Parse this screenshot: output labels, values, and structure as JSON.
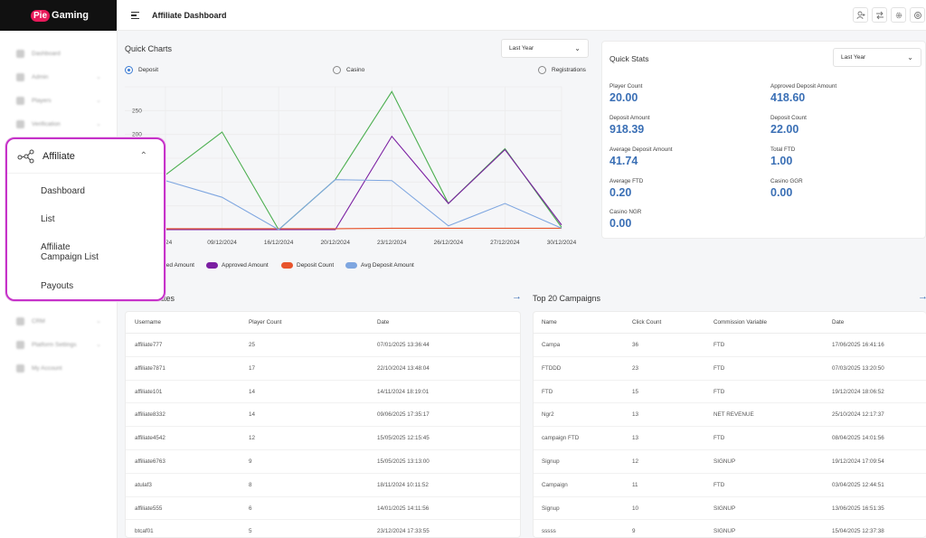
{
  "brand": {
    "logo_badge": "Pie",
    "logo_text": "Gaming"
  },
  "header": {
    "title": "Affiliate Dashboard",
    "icons": [
      "user-add-icon",
      "transfer-icon",
      "gear-icon",
      "settings-icon"
    ]
  },
  "sidebar": {
    "items_top": [
      {
        "label": "Dashboard",
        "icon": "dashboard-icon"
      },
      {
        "label": "Admin",
        "icon": "admin-icon",
        "chevron": "⌄"
      },
      {
        "label": "Players",
        "icon": "players-icon",
        "chevron": "⌄"
      },
      {
        "label": "Verification",
        "icon": "verification-icon",
        "chevron": "⌄"
      }
    ],
    "items_bottom": [
      {
        "label": "CRM",
        "icon": "crm-icon",
        "chevron": "⌄"
      },
      {
        "label": "Platform Settings",
        "icon": "platform-settings-icon",
        "chevron": "⌄"
      },
      {
        "label": "My Account",
        "icon": "account-icon"
      }
    ],
    "affiliate": {
      "label": "Affiliate",
      "caret": "⌃",
      "items": [
        "Dashboard",
        "List",
        "Affiliate",
        "Campaign List",
        "Payouts"
      ]
    }
  },
  "quick_charts": {
    "title": "Quick Charts",
    "period": "Last Year",
    "radios": [
      {
        "label": "Deposit",
        "selected": true
      },
      {
        "label": "Casino",
        "selected": false
      },
      {
        "label": "Registrations",
        "selected": false
      }
    ],
    "legend": [
      {
        "label": "ted Amount",
        "color": "#4caf50"
      },
      {
        "label": "Approved Amount",
        "color": "#7b1fa2"
      },
      {
        "label": "Deposit Count",
        "color": "#e8542c"
      },
      {
        "label": "Avg Deposit Amount",
        "color": "#7ea6e0"
      }
    ]
  },
  "chart_data": {
    "type": "line",
    "x": [
      "24",
      "09/12/2024",
      "16/12/2024",
      "20/12/2024",
      "23/12/2024",
      "26/12/2024",
      "27/12/2024",
      "30/12/2024"
    ],
    "y_ticks": [
      "250",
      "200"
    ],
    "ylim": [
      0,
      300
    ],
    "series": [
      {
        "name": "ted Amount",
        "color": "#4caf50",
        "values": [
          115,
          205,
          0,
          105,
          290,
          55,
          170,
          5
        ]
      },
      {
        "name": "Approved Amount",
        "color": "#7b1fa2",
        "values": [
          0,
          0,
          0,
          0,
          196,
          55,
          168,
          10
        ]
      },
      {
        "name": "Deposit Count",
        "color": "#e8542c",
        "values": [
          2,
          2,
          2,
          2,
          3,
          3,
          3,
          3
        ]
      },
      {
        "name": "Avg Deposit Amount",
        "color": "#7ea6e0",
        "values": [
          103,
          68,
          0,
          105,
          103,
          8,
          55,
          3
        ]
      }
    ]
  },
  "quick_stats": {
    "title": "Quick Stats",
    "period": "Last Year",
    "left": [
      {
        "label": "Player Count",
        "value": "20.00"
      },
      {
        "label": "Deposit Amount",
        "value": "918.39"
      },
      {
        "label": "Average Deposit Amount",
        "value": "41.74"
      },
      {
        "label": "Average FTD",
        "value": "0.20"
      },
      {
        "label": "Casino NGR",
        "value": "0.00"
      }
    ],
    "right": [
      {
        "label": "Approved Deposit Amount",
        "value": "418.60"
      },
      {
        "label": "Deposit Count",
        "value": "22.00"
      },
      {
        "label": "Total FTD",
        "value": "1.00"
      },
      {
        "label": "Casino GGR",
        "value": "0.00"
      }
    ]
  },
  "affiliates_table": {
    "title": "iliates",
    "arrow": "→",
    "columns": [
      "Username",
      "Player Count",
      "Date"
    ],
    "rows": [
      [
        "affiliate777",
        "25",
        "07/01/2025 13:36:44"
      ],
      [
        "affiliate7871",
        "17",
        "22/10/2024 13:48:04"
      ],
      [
        "affiliate101",
        "14",
        "14/11/2024 18:19:01"
      ],
      [
        "affiliate8332",
        "14",
        "09/06/2025 17:35:17"
      ],
      [
        "affiliate4542",
        "12",
        "15/05/2025 12:15:45"
      ],
      [
        "affiliate6763",
        "9",
        "15/05/2025 13:13:00"
      ],
      [
        "atulaf3",
        "8",
        "18/11/2024 10:11:52"
      ],
      [
        "affiliate555",
        "6",
        "14/01/2025 14:11:56"
      ],
      [
        "btcaf01",
        "5",
        "23/12/2024 17:33:55"
      ]
    ]
  },
  "campaigns_table": {
    "title": "Top 20 Campaigns",
    "arrow": "→",
    "columns": [
      "Name",
      "Click Count",
      "Commission Variable",
      "Date"
    ],
    "rows": [
      [
        "Campa",
        "36",
        "FTD",
        "17/06/2025 16:41:16"
      ],
      [
        "FTDDD",
        "23",
        "FTD",
        "07/03/2025 13:20:50"
      ],
      [
        "FTD",
        "15",
        "FTD",
        "19/12/2024 18:06:52"
      ],
      [
        "Ngr2",
        "13",
        "NET REVENUE",
        "25/10/2024 12:17:37"
      ],
      [
        "campaign FTD",
        "13",
        "FTD",
        "08/04/2025 14:01:56"
      ],
      [
        "Signup",
        "12",
        "SIGNUP",
        "19/12/2024 17:09:54"
      ],
      [
        "Campaign",
        "11",
        "FTD",
        "03/04/2025 12:44:51"
      ],
      [
        "Signup",
        "10",
        "SIGNUP",
        "13/06/2025 16:51:35"
      ],
      [
        "sssss",
        "9",
        "SIGNUP",
        "15/04/2025 12:37:38"
      ]
    ]
  }
}
